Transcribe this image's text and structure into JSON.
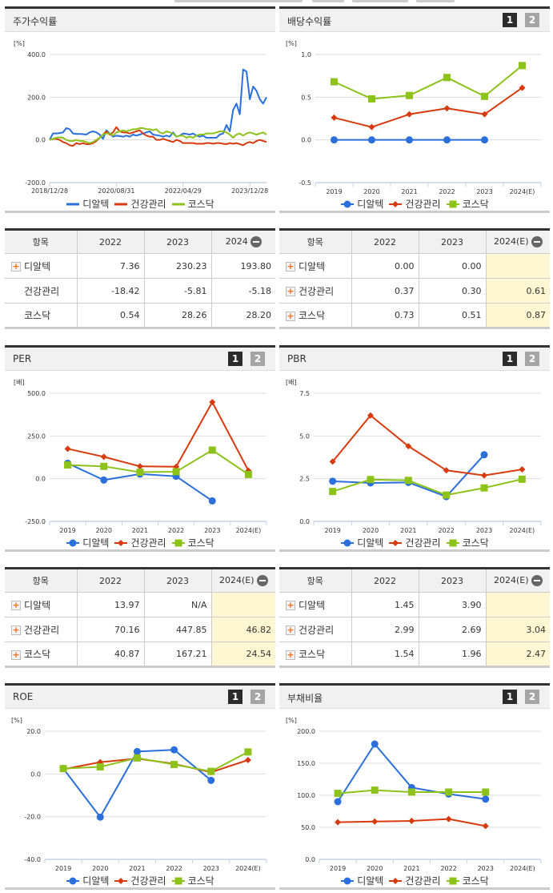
{
  "legend": [
    "디알텍",
    "건강관리",
    "코스닥"
  ],
  "colors": {
    "series": [
      "#2a6fdb",
      "#d83a0e",
      "#8cc21a"
    ],
    "grid": "#dddddd",
    "axis": "#c5d2e4",
    "highlight": "#fff7d1"
  },
  "buttons": {
    "one": "1",
    "two": "2"
  },
  "panels": {
    "stock_return": {
      "title": "주가수익률"
    },
    "dividend": {
      "title": "배당수익률"
    },
    "per": {
      "title": "PER"
    },
    "pbr": {
      "title": "PBR"
    },
    "roe": {
      "title": "ROE"
    },
    "debt": {
      "title": "부채비율"
    }
  },
  "chart_data": [
    {
      "id": "stock_return",
      "type": "line",
      "title": "주가수익률",
      "unit": "[%]",
      "ylim": [
        -200,
        400
      ],
      "yticks": [
        "400.0",
        "200.0",
        "0.0",
        "-200.0"
      ],
      "ytick_values": [
        400,
        200,
        0,
        -200
      ],
      "x_labels": [
        "2018/12/28",
        "2020/08/31",
        "2022/04/29",
        "2023/12/28"
      ],
      "x_label_index": [
        0,
        20,
        40,
        60
      ],
      "markers": false,
      "series": [
        {
          "name": "디알텍",
          "values": [
            0,
            30,
            30,
            32,
            35,
            55,
            50,
            30,
            28,
            28,
            27,
            25,
            35,
            40,
            35,
            25,
            5,
            45,
            30,
            15,
            20,
            18,
            15,
            20,
            15,
            25,
            20,
            25,
            30,
            35,
            40,
            25,
            22,
            20,
            15,
            20,
            15,
            35,
            15,
            20,
            30,
            28,
            25,
            30,
            20,
            15,
            20,
            10,
            10,
            10,
            10,
            25,
            30,
            70,
            40,
            140,
            170,
            120,
            330,
            320,
            190,
            250,
            230,
            190,
            170,
            200
          ]
        },
        {
          "name": "건강관리",
          "values": [
            0,
            5,
            5,
            0,
            -10,
            -15,
            -25,
            -28,
            -15,
            -20,
            -15,
            -20,
            -20,
            -15,
            -5,
            10,
            25,
            40,
            25,
            35,
            60,
            40,
            35,
            35,
            30,
            35,
            40,
            45,
            30,
            20,
            15,
            15,
            0,
            0,
            5,
            0,
            -5,
            -10,
            0,
            -5,
            -15,
            -15,
            -15,
            -15,
            -18,
            -18,
            -18,
            -15,
            -15,
            -18,
            -15,
            -15,
            -18,
            -20,
            -15,
            -18,
            -15,
            -20,
            -25,
            -15,
            -10,
            -15,
            -5,
            0,
            -5,
            -10
          ]
        },
        {
          "name": "코스닥",
          "values": [
            0,
            5,
            10,
            12,
            10,
            0,
            -5,
            -5,
            0,
            -5,
            -5,
            -10,
            -15,
            -10,
            0,
            10,
            25,
            30,
            30,
            20,
            35,
            40,
            45,
            40,
            45,
            50,
            50,
            55,
            55,
            50,
            50,
            45,
            50,
            35,
            30,
            40,
            35,
            30,
            15,
            20,
            20,
            10,
            15,
            10,
            20,
            25,
            25,
            30,
            30,
            30,
            35,
            40,
            40,
            35,
            25,
            10,
            25,
            30,
            20,
            30,
            35,
            30,
            25,
            30,
            35,
            25
          ]
        }
      ]
    },
    {
      "id": "dividend",
      "type": "line",
      "title": "배당수익률",
      "unit": "[%]",
      "ylim": [
        -0.5,
        1.0
      ],
      "yticks": [
        "1.0",
        "0.5",
        "0.0",
        "-0.5"
      ],
      "ytick_values": [
        1.0,
        0.5,
        0,
        -0.5
      ],
      "categories": [
        "2019",
        "2020",
        "2021",
        "2022",
        "2023",
        "2024(E)"
      ],
      "markers": true,
      "series": [
        {
          "name": "디알텍",
          "values": [
            0,
            0,
            0,
            0,
            0,
            null
          ]
        },
        {
          "name": "건강관리",
          "values": [
            0.26,
            0.15,
            0.3,
            0.37,
            0.3,
            0.61
          ]
        },
        {
          "name": "코스닥",
          "values": [
            0.68,
            0.48,
            0.52,
            0.73,
            0.51,
            0.87
          ]
        }
      ]
    },
    {
      "id": "per",
      "type": "line",
      "title": "PER",
      "unit": "[배]",
      "ylim": [
        -250,
        500
      ],
      "yticks": [
        "500.0",
        "250.0",
        "0.0",
        "-250.0"
      ],
      "ytick_values": [
        500,
        250,
        0,
        -250
      ],
      "categories": [
        "2019",
        "2020",
        "2021",
        "2022",
        "2023",
        "2024(E)"
      ],
      "markers": true,
      "series": [
        {
          "name": "디알텍",
          "values": [
            90,
            -8,
            27,
            13.97,
            -130,
            null
          ]
        },
        {
          "name": "건강관리",
          "values": [
            175,
            128,
            72,
            70.16,
            447.85,
            46.82
          ]
        },
        {
          "name": "코스닥",
          "values": [
            80,
            72,
            38,
            40.87,
            167.21,
            24.54
          ]
        }
      ]
    },
    {
      "id": "pbr",
      "type": "line",
      "title": "PBR",
      "unit": "[배]",
      "ylim": [
        0,
        7.5
      ],
      "yticks": [
        "7.5",
        "5.0",
        "2.5",
        "0.0"
      ],
      "ytick_values": [
        7.5,
        5,
        2.5,
        0
      ],
      "categories": [
        "2019",
        "2020",
        "2021",
        "2022",
        "2023",
        "2024(E)"
      ],
      "markers": true,
      "series": [
        {
          "name": "디알텍",
          "values": [
            2.35,
            2.25,
            2.28,
            1.45,
            3.9,
            null
          ]
        },
        {
          "name": "건강관리",
          "values": [
            3.5,
            6.2,
            4.4,
            2.99,
            2.69,
            3.04
          ]
        },
        {
          "name": "코스닥",
          "values": [
            1.75,
            2.45,
            2.4,
            1.54,
            1.96,
            2.47
          ]
        }
      ]
    },
    {
      "id": "roe",
      "type": "line",
      "title": "ROE",
      "unit": "[%]",
      "ylim": [
        -40,
        20
      ],
      "yticks": [
        "20.0",
        "0.0",
        "-20.0",
        "-40.0"
      ],
      "ytick_values": [
        20,
        0,
        -20,
        -40
      ],
      "categories": [
        "2019",
        "2020",
        "2021",
        "2022",
        "2023",
        "2024(E)"
      ],
      "markers": true,
      "series": [
        {
          "name": "디알텍",
          "values": [
            2.5,
            -20.2,
            10.5,
            11.3,
            -3,
            null
          ]
        },
        {
          "name": "건강관리",
          "values": [
            2.2,
            5.5,
            7.2,
            4.7,
            0.8,
            6.5
          ]
        },
        {
          "name": "코스닥",
          "values": [
            2.5,
            3.3,
            7.5,
            4.4,
            1.2,
            10.3
          ]
        }
      ]
    },
    {
      "id": "debt",
      "type": "line",
      "title": "부채비율",
      "unit": "[%]",
      "ylim": [
        0,
        200
      ],
      "yticks": [
        "200.0",
        "150.0",
        "100.0",
        "50.0",
        "0.0"
      ],
      "ytick_values": [
        200,
        150,
        100,
        50,
        0
      ],
      "categories": [
        "2019",
        "2020",
        "2021",
        "2022",
        "2023",
        "2024(E)"
      ],
      "markers": true,
      "series": [
        {
          "name": "디알텍",
          "values": [
            90,
            180,
            112,
            102,
            94,
            null
          ]
        },
        {
          "name": "건강관리",
          "values": [
            58,
            59,
            60,
            63,
            52,
            null
          ]
        },
        {
          "name": "코스닥",
          "values": [
            103,
            108,
            105,
            105,
            105,
            null
          ]
        }
      ]
    }
  ],
  "tables": {
    "stock_return": {
      "headers": [
        "항목",
        "2022",
        "2023",
        "2024"
      ],
      "rows": [
        {
          "label": "디알텍",
          "cells": [
            "7.36",
            "230.23",
            "193.80"
          ]
        },
        {
          "label": "건강관리",
          "cells": [
            "-18.42",
            "-5.81",
            "-5.18"
          ]
        },
        {
          "label": "코스닥",
          "cells": [
            "0.54",
            "28.26",
            "28.20"
          ]
        }
      ]
    },
    "dividend": {
      "headers": [
        "항목",
        "2022",
        "2023",
        "2024(E)"
      ],
      "rows": [
        {
          "label": "디알텍",
          "cells": [
            "0.00",
            "0.00",
            ""
          ]
        },
        {
          "label": "건강관리",
          "cells": [
            "0.37",
            "0.30",
            "0.61"
          ]
        },
        {
          "label": "코스닥",
          "cells": [
            "0.73",
            "0.51",
            "0.87"
          ]
        }
      ]
    },
    "per": {
      "headers": [
        "항목",
        "2022",
        "2023",
        "2024(E)"
      ],
      "rows": [
        {
          "label": "디알텍",
          "cells": [
            "13.97",
            "N/A",
            ""
          ]
        },
        {
          "label": "건강관리",
          "cells": [
            "70.16",
            "447.85",
            "46.82"
          ]
        },
        {
          "label": "코스닥",
          "cells": [
            "40.87",
            "167.21",
            "24.54"
          ]
        }
      ]
    },
    "pbr": {
      "headers": [
        "항목",
        "2022",
        "2023",
        "2024(E)"
      ],
      "rows": [
        {
          "label": "디알텍",
          "cells": [
            "1.45",
            "3.90",
            ""
          ]
        },
        {
          "label": "건강관리",
          "cells": [
            "2.99",
            "2.69",
            "3.04"
          ]
        },
        {
          "label": "코스닥",
          "cells": [
            "1.54",
            "1.96",
            "2.47"
          ]
        }
      ]
    }
  }
}
